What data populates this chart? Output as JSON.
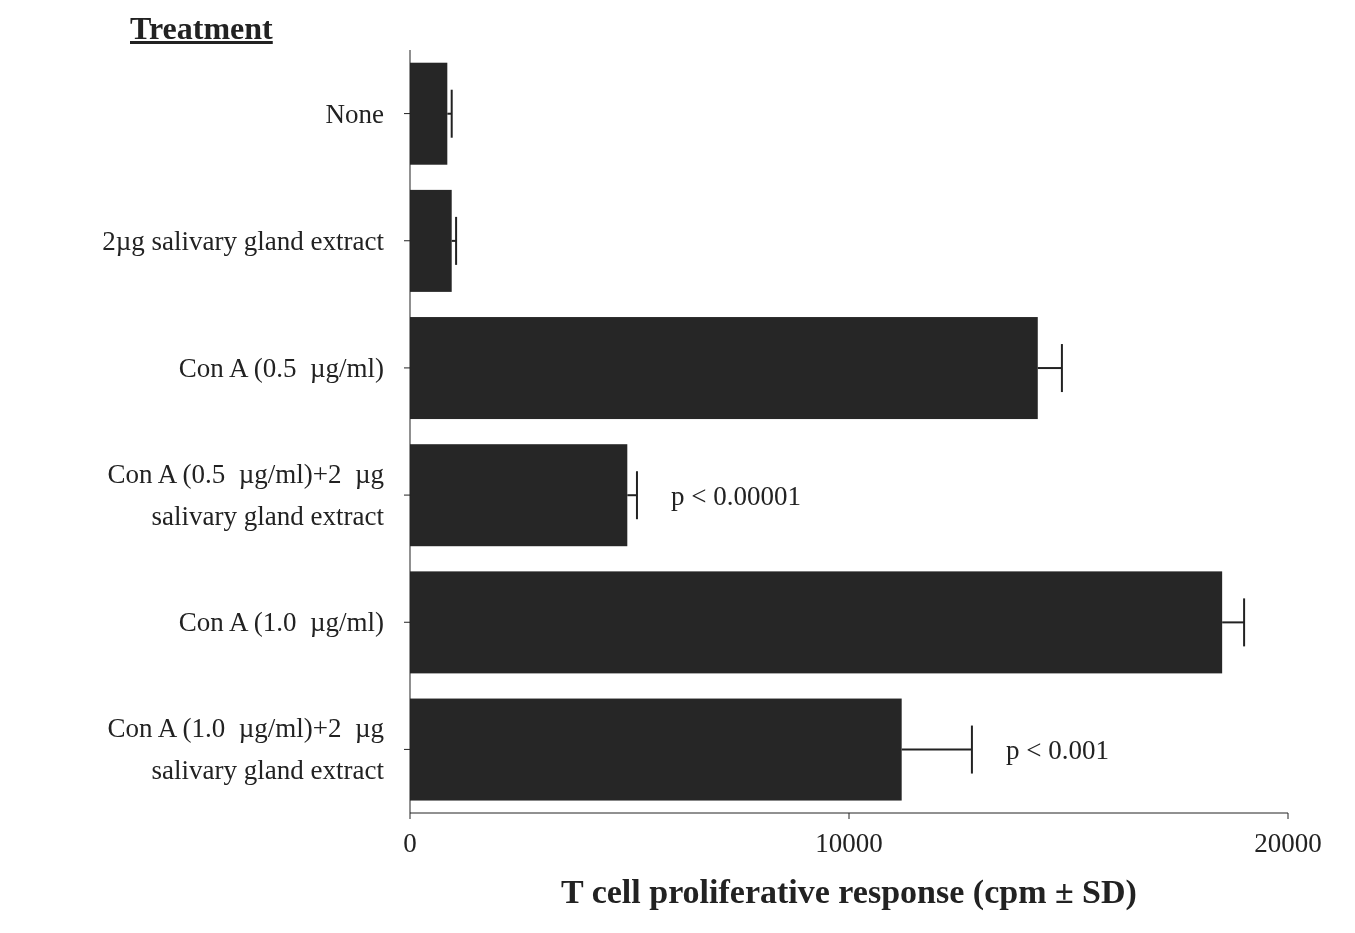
{
  "chart_data": {
    "type": "bar",
    "orientation": "horizontal",
    "ylabel": "Treatment",
    "xlabel": "T cell proliferative response (cpm ± SD)",
    "categories": [
      "None",
      "2µg salivary gland extract",
      "Con A (0.5  µg/ml)",
      "Con A (0.5  µg/ml)+2  µg\nsalivary gland extract",
      "Con A (1.0  µg/ml)",
      "Con A (1.0  µg/ml)+2  µg\nsalivary gland extract"
    ],
    "values": [
      850,
      950,
      14300,
      4950,
      18500,
      11200
    ],
    "errors": [
      [
        850,
        950
      ],
      [
        950,
        1050
      ],
      [
        14300,
        14850
      ],
      [
        4950,
        5170
      ],
      [
        18500,
        19000
      ],
      [
        11200,
        12800
      ]
    ],
    "color": "#262626",
    "xlim": [
      0,
      20000
    ],
    "xticks": [
      0,
      10000,
      20000
    ],
    "grid": false,
    "legend": false,
    "annotations": [
      {
        "text": "p < 0.00001",
        "x": 5170,
        "y": "Con A (0.5  µg/ml)+2  µg\nsalivary gland extract"
      },
      {
        "text": "p < 0.001",
        "x": 12800,
        "y": "Con A (1.0  µg/ml)+2  µg\nsalivary gland extract"
      }
    ]
  }
}
